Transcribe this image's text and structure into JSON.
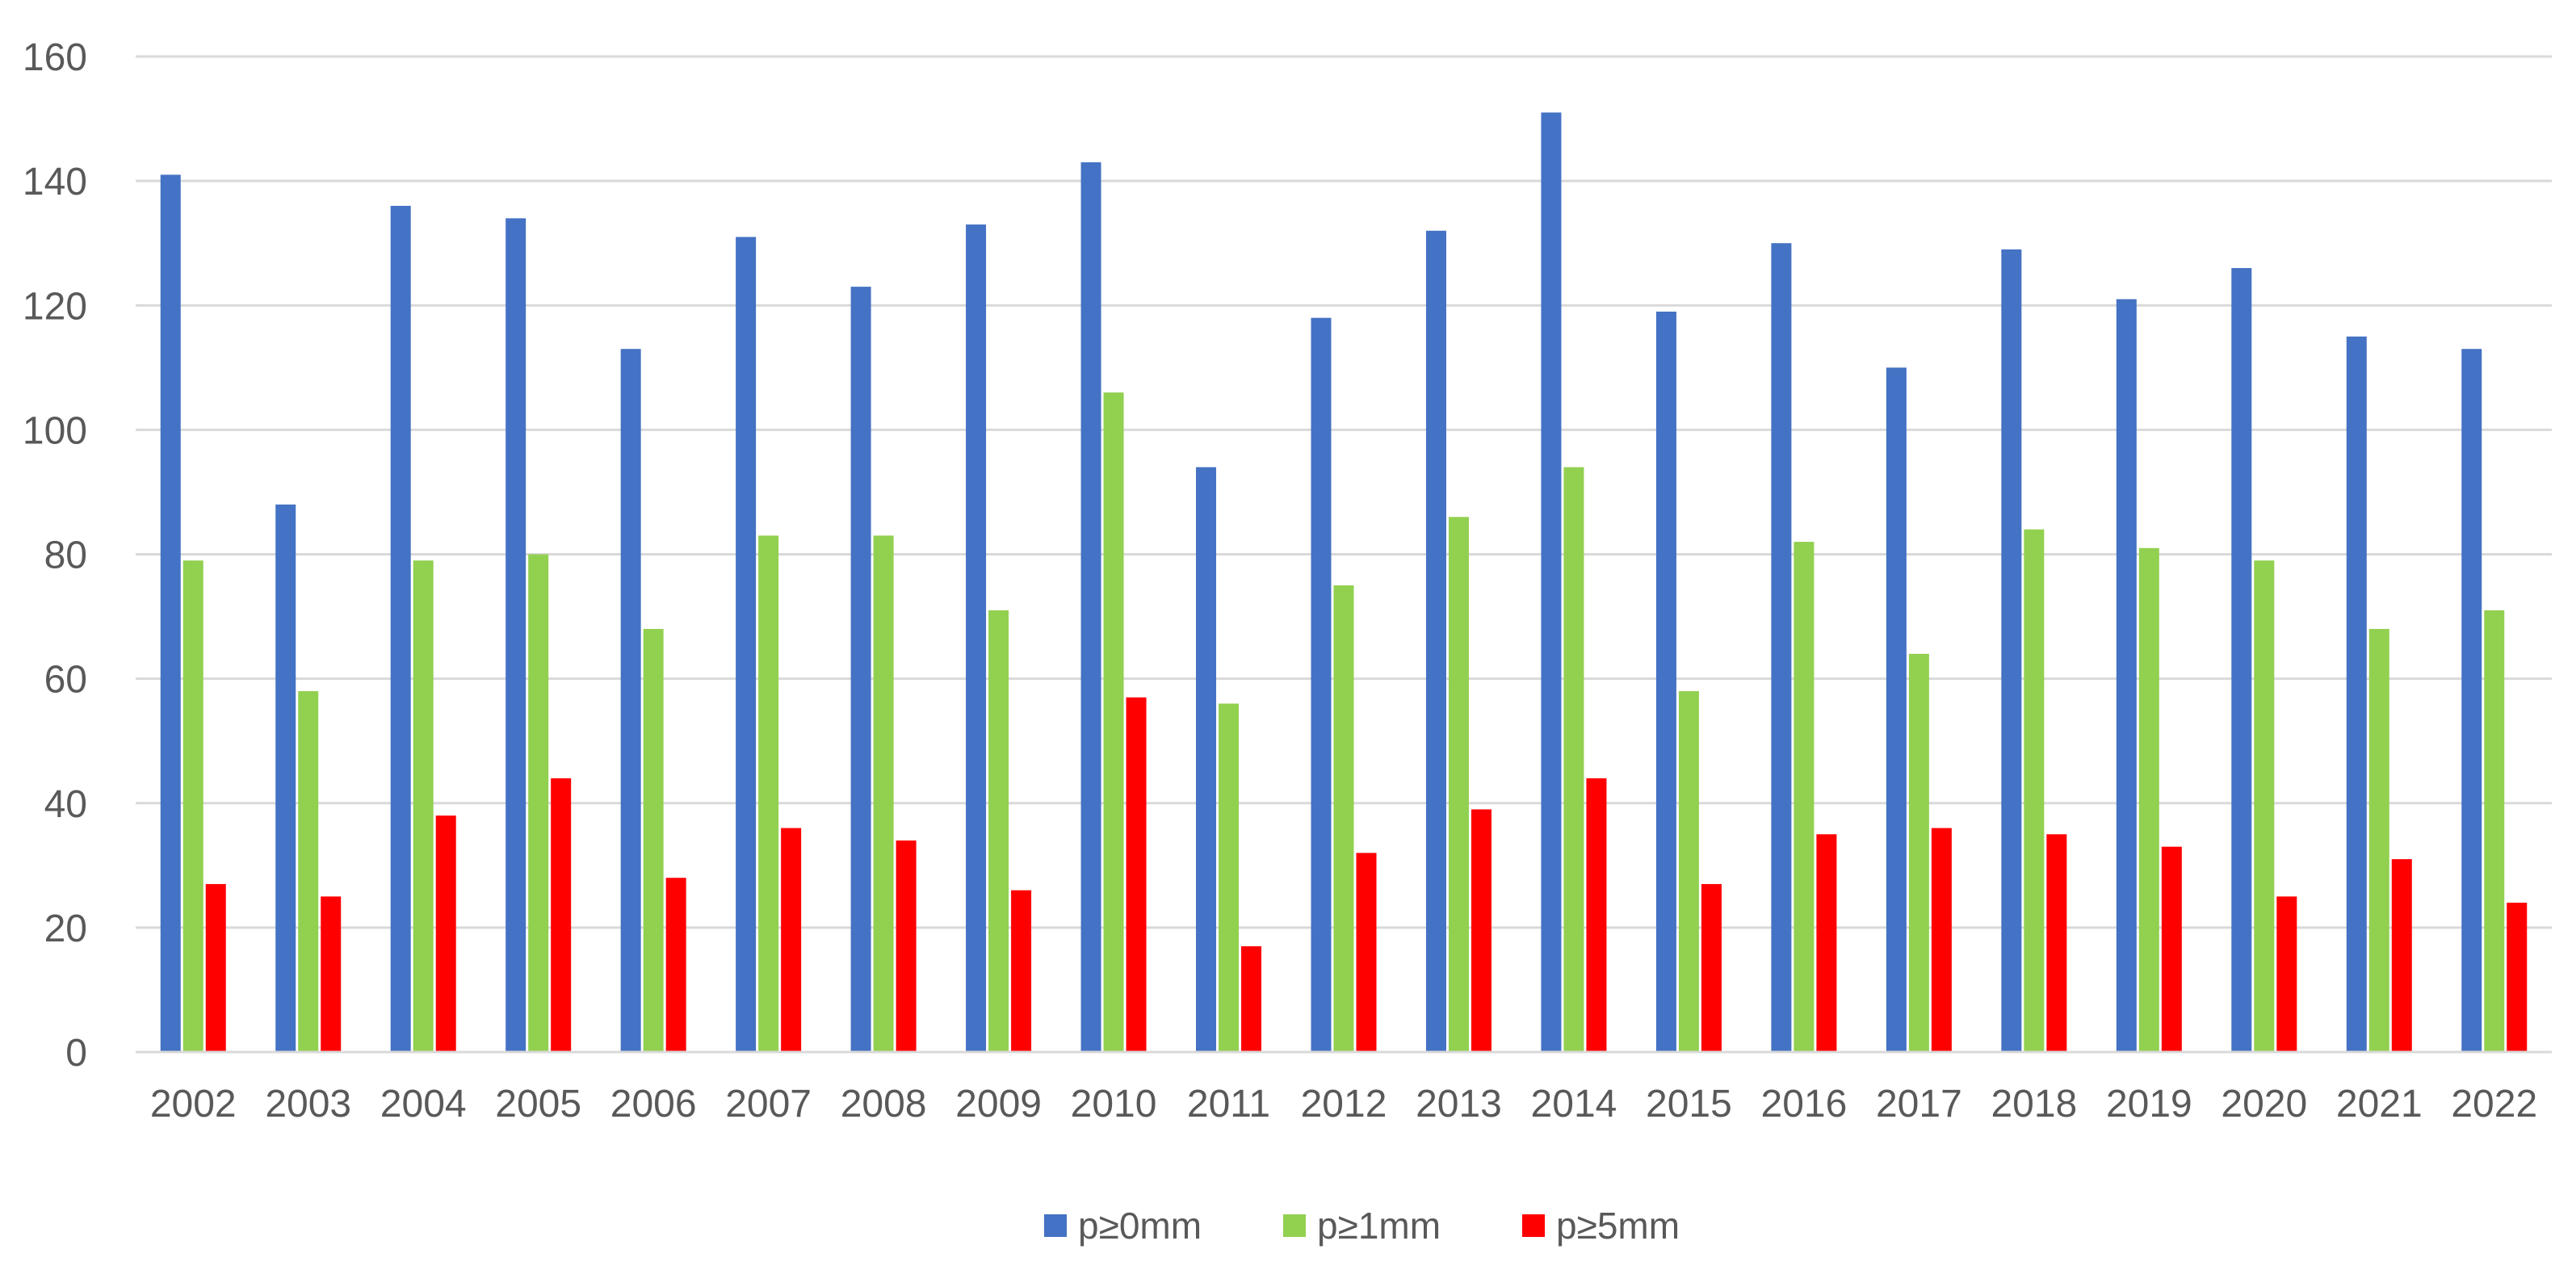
{
  "chart_data": {
    "type": "bar",
    "categories": [
      "2002",
      "2003",
      "2004",
      "2005",
      "2006",
      "2007",
      "2008",
      "2009",
      "2010",
      "2011",
      "2012",
      "2013",
      "2014",
      "2015",
      "2016",
      "2017",
      "2018",
      "2019",
      "2020",
      "2021",
      "2022"
    ],
    "series": [
      {
        "name": "p≥0mm",
        "color": "#4472C4",
        "values": [
          141,
          88,
          136,
          134,
          113,
          131,
          123,
          133,
          143,
          94,
          118,
          132,
          151,
          119,
          130,
          110,
          129,
          121,
          126,
          115,
          113
        ]
      },
      {
        "name": "p≥1mm",
        "color": "#92D050",
        "values": [
          79,
          58,
          79,
          80,
          68,
          83,
          83,
          71,
          106,
          56,
          75,
          86,
          94,
          58,
          82,
          64,
          84,
          81,
          79,
          68,
          71
        ]
      },
      {
        "name": "p≥5mm",
        "color": "#FF0000",
        "values": [
          27,
          25,
          38,
          44,
          28,
          36,
          34,
          26,
          57,
          17,
          32,
          39,
          44,
          27,
          35,
          36,
          35,
          33,
          25,
          31,
          24
        ]
      }
    ],
    "yticks": [
      "0",
      "20",
      "40",
      "60",
      "80",
      "100",
      "120",
      "140",
      "160"
    ],
    "ylim": [
      0,
      160
    ],
    "grid": true,
    "legend_position": "bottom-center",
    "title": "",
    "xlabel": "",
    "ylabel": ""
  }
}
